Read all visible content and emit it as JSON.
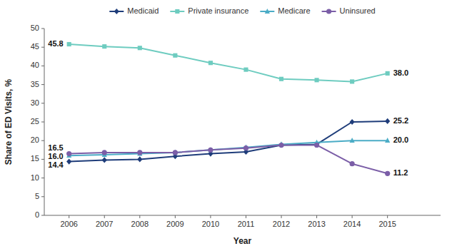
{
  "chart_data": {
    "type": "line",
    "x": [
      2006,
      2007,
      2008,
      2009,
      2010,
      2011,
      2012,
      2013,
      2014,
      2015
    ],
    "xlim": [
      2005.3,
      2016.5
    ],
    "xticks": [
      2006,
      2007,
      2008,
      2009,
      2010,
      2011,
      2012,
      2013,
      2014,
      2015
    ],
    "ylim": [
      0,
      50
    ],
    "yticks": [
      0,
      5,
      10,
      15,
      20,
      25,
      30,
      35,
      40,
      45,
      50
    ],
    "xlabel": "Year",
    "ylabel": "Share of ED Visits, %",
    "grid": false,
    "legend": "top",
    "series": [
      {
        "name": "Medicaid",
        "color": "#1f3d7a",
        "marker": "diamond",
        "values": [
          14.4,
          14.8,
          15.0,
          15.8,
          16.5,
          17.0,
          18.8,
          19.0,
          25.0,
          25.2
        ],
        "value_labels": [
          "14.4",
          null,
          null,
          null,
          null,
          null,
          null,
          null,
          null,
          "25.2"
        ]
      },
      {
        "name": "Private insurance",
        "color": "#6eccc0",
        "marker": "square",
        "values": [
          45.8,
          45.2,
          44.8,
          42.8,
          40.8,
          39.0,
          36.5,
          36.2,
          35.8,
          38.0
        ],
        "value_labels": [
          "45.8",
          null,
          null,
          null,
          null,
          null,
          null,
          null,
          null,
          "38.0"
        ]
      },
      {
        "name": "Medicare",
        "color": "#4bacc6",
        "marker": "triangle",
        "values": [
          16.0,
          16.2,
          16.5,
          16.8,
          17.5,
          18.2,
          19.0,
          19.5,
          20.0,
          20.0
        ],
        "value_labels": [
          "16.0",
          null,
          null,
          null,
          null,
          null,
          null,
          null,
          null,
          "20.0"
        ]
      },
      {
        "name": "Uninsured",
        "color": "#7b5ea7",
        "marker": "circle",
        "values": [
          16.5,
          16.8,
          16.8,
          16.8,
          17.5,
          18.0,
          18.8,
          18.8,
          13.8,
          11.2
        ],
        "value_labels": [
          "16.5",
          null,
          null,
          null,
          null,
          null,
          null,
          null,
          null,
          "11.2"
        ]
      }
    ]
  }
}
